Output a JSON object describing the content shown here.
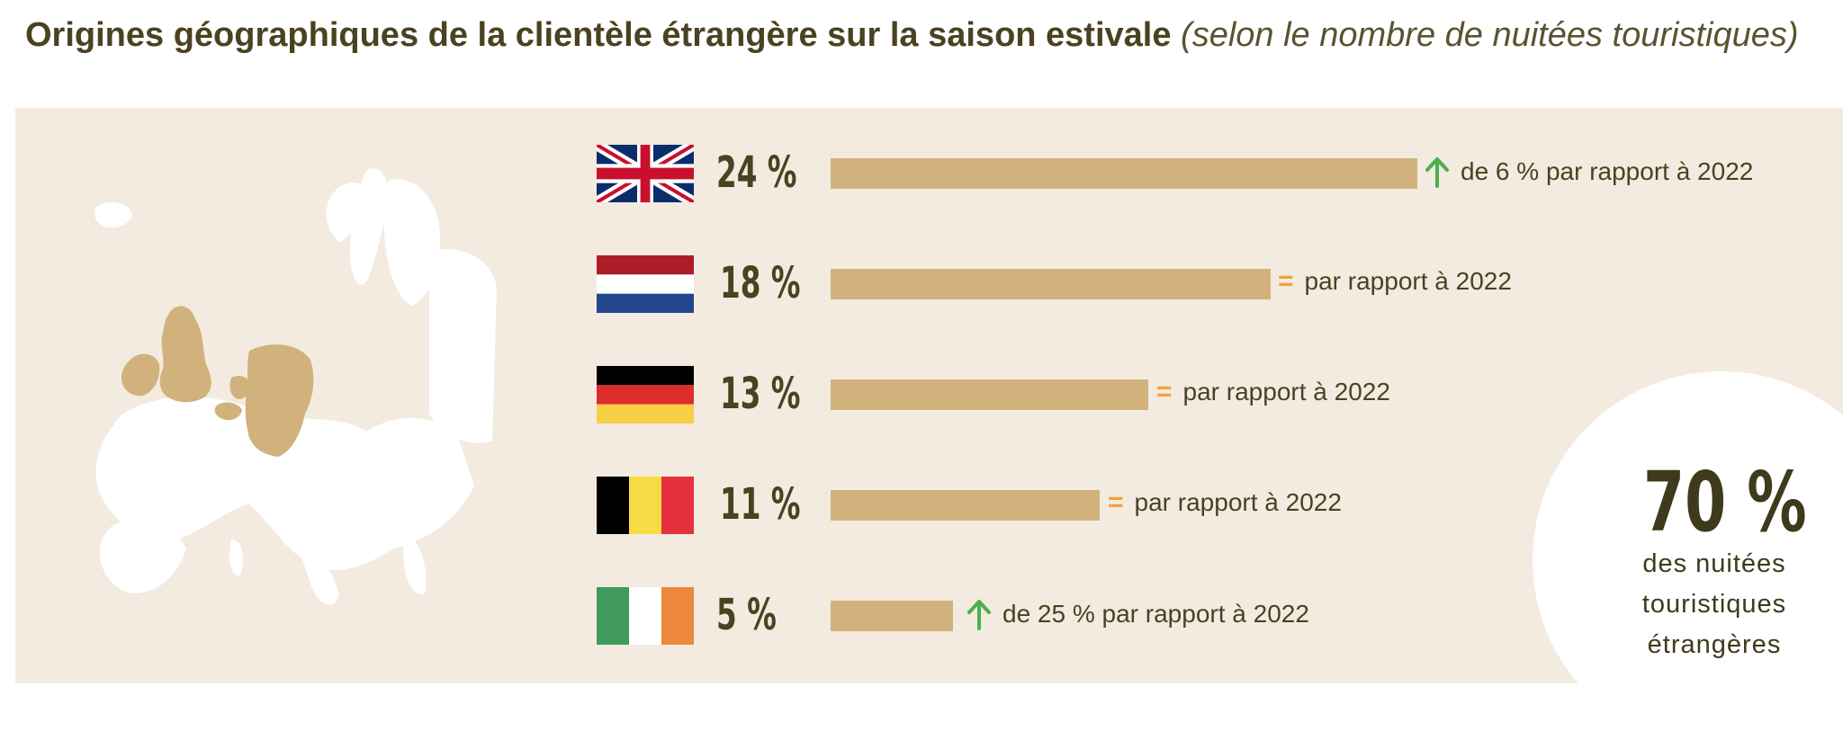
{
  "title": {
    "main": "Origines géographiques de la clientèle étrangère sur la saison estivale",
    "sub": "(selon le nombre de nuitées touristiques)"
  },
  "colors": {
    "bar": "#d1b27c",
    "background_panel": "#f3ebe0",
    "text": "#4a4220",
    "arrow_up": "#4caf50",
    "equal_sign": "#f0a33a"
  },
  "chart_data": {
    "type": "bar",
    "categories": [
      "24 %",
      "18 %",
      "13 %",
      "11 %",
      "5 %"
    ],
    "values": [
      24,
      18,
      13,
      11,
      5
    ],
    "unit": "%",
    "xlim": [
      0,
      24
    ],
    "trend": [
      "up",
      "equal",
      "equal",
      "equal",
      "up"
    ],
    "notes": [
      "de 6 % par rapport à 2022",
      "par rapport à 2022",
      "par rapport à 2022",
      "par rapport à 2022",
      "de 25 % par rapport à 2022"
    ],
    "flags": [
      "uk-flag-icon",
      "netherlands-flag-icon",
      "germany-flag-icon",
      "belgium-flag-icon",
      "ireland-flag-icon"
    ]
  },
  "summary": {
    "value": "70 %",
    "line1": "des nuitées",
    "line2": "touristiques",
    "line3": "étrangères"
  }
}
